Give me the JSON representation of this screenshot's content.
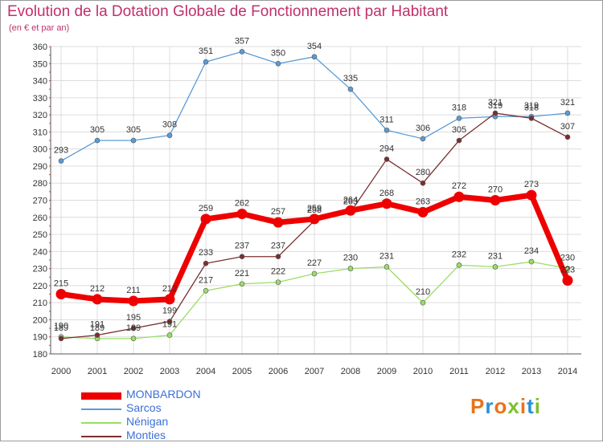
{
  "title": "Evolution de la Dotation Globale de Fonctionnement par Habitant",
  "subtitle": "(en € et par an)",
  "logo": {
    "text": "Proxiti",
    "colors": [
      "#e8731a",
      "#2a8fd6",
      "#e8731a",
      "#7dbf2e",
      "#e8731a",
      "#2a8fd6",
      "#7dbf2e"
    ]
  },
  "chart_data": {
    "type": "line",
    "x": [
      2000,
      2001,
      2002,
      2003,
      2004,
      2005,
      2006,
      2007,
      2008,
      2009,
      2010,
      2011,
      2012,
      2013,
      2014
    ],
    "ylim": [
      180,
      360
    ],
    "yticks": [
      180,
      190,
      200,
      210,
      220,
      230,
      240,
      250,
      260,
      270,
      280,
      290,
      300,
      310,
      320,
      330,
      340,
      350,
      360
    ],
    "grid": true,
    "legend_position": "bottom-left",
    "series": [
      {
        "name": "MONBARDON",
        "color": "#ee0000",
        "values": [
          215,
          212,
          211,
          212,
          259,
          262,
          257,
          259,
          264,
          268,
          263,
          272,
          270,
          273,
          223
        ]
      },
      {
        "name": "Sarcos",
        "color": "#5a9bd5",
        "values": [
          293,
          305,
          305,
          308,
          351,
          357,
          350,
          354,
          335,
          311,
          306,
          318,
          319,
          319,
          321
        ]
      },
      {
        "name": "Nénigan",
        "color": "#99dd66",
        "values": [
          190,
          189,
          189,
          191,
          217,
          221,
          222,
          227,
          230,
          231,
          210,
          232,
          231,
          234,
          230
        ]
      },
      {
        "name": "Monties",
        "color": "#7a2f2f",
        "values": [
          189,
          191,
          195,
          199,
          233,
          237,
          237,
          258,
          263,
          294,
          280,
          305,
          321,
          318,
          307
        ]
      }
    ]
  }
}
